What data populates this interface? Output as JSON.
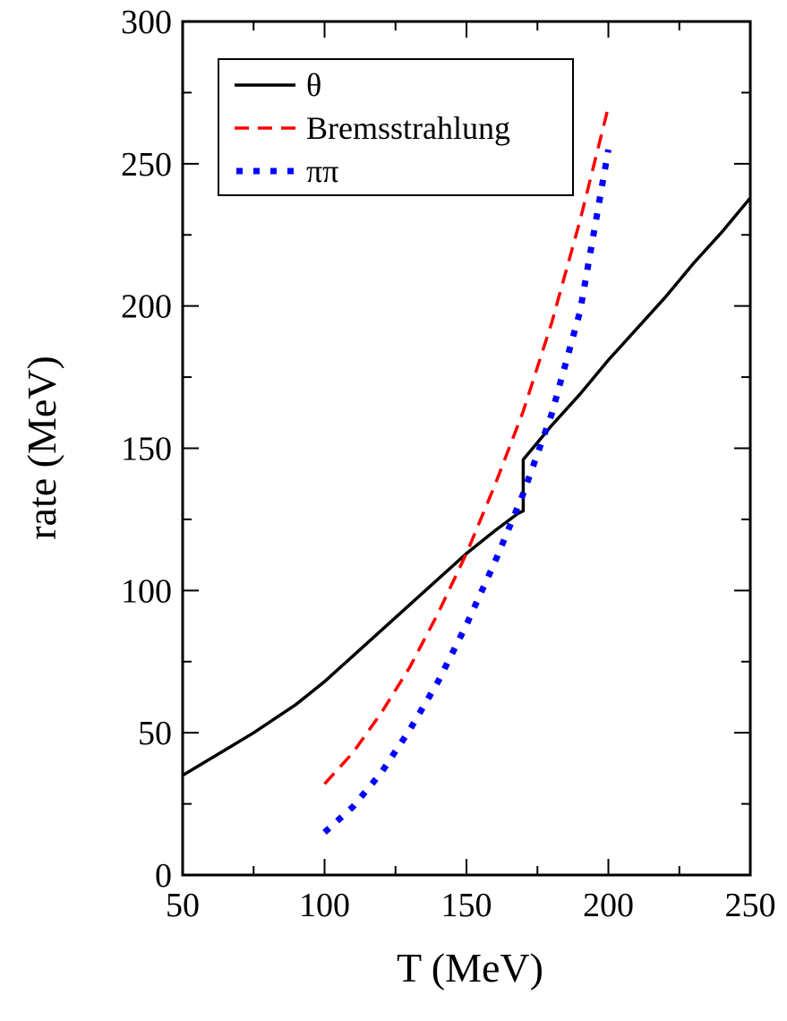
{
  "chart_data": {
    "type": "line",
    "xlabel": "T (MeV)",
    "ylabel": "rate (MeV)",
    "xlim": [
      50,
      250
    ],
    "ylim": [
      0,
      300
    ],
    "x_ticks": [
      50,
      100,
      150,
      200,
      250
    ],
    "y_ticks": [
      0,
      50,
      100,
      150,
      200,
      250,
      300
    ],
    "x_minor_step": 25,
    "y_minor_step": 25,
    "grid": false,
    "legend_position": "top-left",
    "series": [
      {
        "name": "θ",
        "color": "#000000",
        "style": "solid",
        "points": [
          [
            50,
            35
          ],
          [
            60,
            41
          ],
          [
            75,
            50
          ],
          [
            90,
            60
          ],
          [
            100,
            68
          ],
          [
            110,
            77
          ],
          [
            120,
            86
          ],
          [
            130,
            95
          ],
          [
            140,
            104
          ],
          [
            150,
            113
          ],
          [
            160,
            121
          ],
          [
            168,
            127
          ],
          [
            170,
            128
          ],
          [
            170,
            146
          ],
          [
            175,
            152
          ],
          [
            180,
            158
          ],
          [
            190,
            169
          ],
          [
            200,
            181
          ],
          [
            210,
            192
          ],
          [
            220,
            203
          ],
          [
            230,
            215
          ],
          [
            240,
            226
          ],
          [
            250,
            238
          ]
        ]
      },
      {
        "name": "Bremsstrahlung",
        "color": "#ff0000",
        "style": "dashed",
        "points": [
          [
            100,
            32
          ],
          [
            110,
            43
          ],
          [
            120,
            57
          ],
          [
            130,
            73
          ],
          [
            140,
            92
          ],
          [
            150,
            113
          ],
          [
            160,
            137
          ],
          [
            170,
            163
          ],
          [
            180,
            194
          ],
          [
            190,
            230
          ],
          [
            200,
            270
          ]
        ]
      },
      {
        "name": "ππ",
        "color": "#0000ff",
        "style": "dotted",
        "points": [
          [
            100,
            15
          ],
          [
            110,
            24
          ],
          [
            120,
            36
          ],
          [
            130,
            51
          ],
          [
            140,
            68
          ],
          [
            150,
            88
          ],
          [
            160,
            110
          ],
          [
            170,
            134
          ],
          [
            180,
            162
          ],
          [
            190,
            198
          ],
          [
            200,
            255
          ]
        ]
      }
    ]
  }
}
